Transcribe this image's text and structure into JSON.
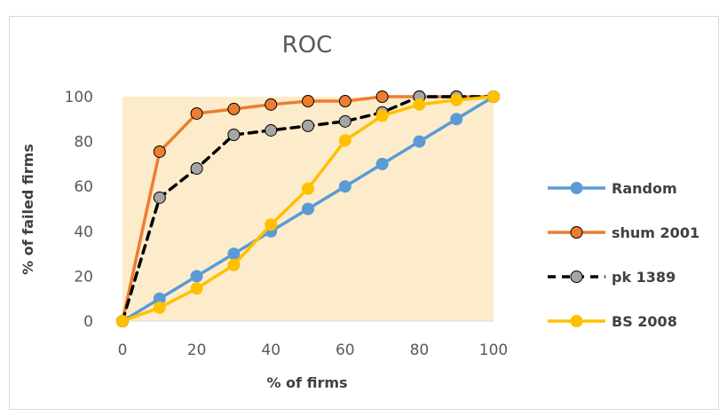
{
  "chart_data": {
    "type": "line",
    "title": "ROC",
    "xlabel": "% of firms",
    "ylabel": "% of failed firms",
    "x": [
      0,
      10,
      20,
      30,
      40,
      50,
      60,
      70,
      80,
      90,
      100
    ],
    "xlim": [
      0,
      100
    ],
    "ylim": [
      0,
      100
    ],
    "x_ticks": [
      0,
      20,
      40,
      60,
      80,
      100
    ],
    "y_ticks": [
      0,
      20,
      40,
      60,
      80,
      100
    ],
    "plot_background": "#fdeccb",
    "grid": false,
    "legend_position": "right",
    "series": [
      {
        "name": "Random",
        "color": "#5b9bd5",
        "marker_fill": "#5b9bd5",
        "marker_stroke": "#5b9bd5",
        "dashed": false,
        "values": [
          0,
          10,
          20,
          30,
          40,
          50,
          60,
          70,
          80,
          90,
          100
        ]
      },
      {
        "name": "shum 2001",
        "color": "#ed7d31",
        "marker_fill": "#ed7d31",
        "marker_stroke": "#000000",
        "dashed": false,
        "values": [
          0,
          75.5,
          92.5,
          94.5,
          96.5,
          98,
          98,
          100,
          100,
          100,
          100
        ]
      },
      {
        "name": "pk 1389",
        "color": "#000000",
        "marker_fill": "#a5a5a5",
        "marker_stroke": "#000000",
        "dashed": true,
        "values": [
          0,
          55,
          68,
          83,
          85,
          87,
          89,
          93,
          100,
          100,
          100
        ]
      },
      {
        "name": "BS 2008",
        "color": "#ffc000",
        "marker_fill": "#ffc000",
        "marker_stroke": "#ffc000",
        "dashed": false,
        "values": [
          0,
          6,
          14.5,
          25,
          43,
          59,
          80.5,
          91.5,
          96.5,
          98.5,
          100
        ]
      }
    ]
  }
}
